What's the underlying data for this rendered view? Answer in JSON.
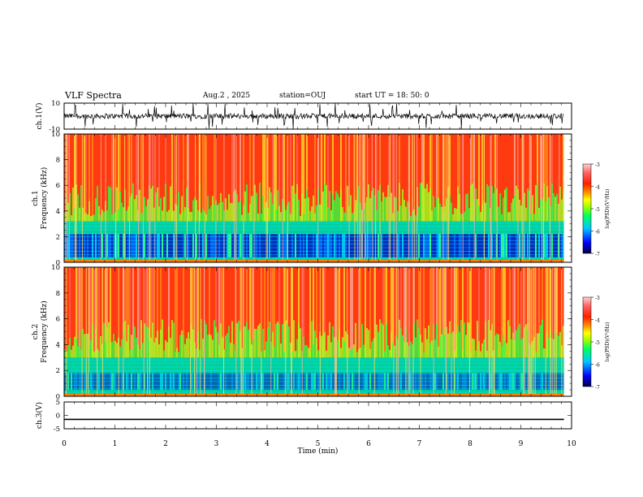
{
  "header": {
    "title": "VLF Spectra",
    "date": "Aug.2 , 2025",
    "station": "station=OUJ",
    "start_ut": "start UT = 18: 50: 0"
  },
  "chart_data": [
    {
      "type": "line",
      "name": "ch1-waveform",
      "ylabel": "ch.1(V)",
      "ylim": [
        -10,
        10
      ],
      "yticks": [
        "10",
        "-10"
      ],
      "xlim": [
        0,
        10
      ],
      "baseline": 0,
      "noise_amplitude": 2,
      "spike_min": -10,
      "spike_max": 10
    },
    {
      "type": "heatmap",
      "name": "ch1-spectrogram",
      "ylabel": "ch.1 Frequency (kHz)",
      "ylim": [
        0,
        10
      ],
      "yticks": [
        "0",
        "2",
        "4",
        "6",
        "8",
        "10"
      ],
      "xlim": [
        0,
        10
      ],
      "data_end_min": 9.85,
      "colorbar": {
        "label": "log(PSD)(V²/Hz)",
        "ticks": [
          "-3",
          "-4",
          "-5",
          "-6",
          "-7"
        ],
        "range": [
          -7,
          -3
        ]
      },
      "low_band_khz": [
        0,
        3.2
      ],
      "colors": [
        "#000060",
        "#0000c0",
        "#0040ff",
        "#00c8ff",
        "#00ff80",
        "#80ff00",
        "#ffff00",
        "#ffa000",
        "#ff3000",
        "#ff6060",
        "#ffc0c0"
      ]
    },
    {
      "type": "heatmap",
      "name": "ch2-spectrogram",
      "ylabel": "ch.2 Frequency (kHz)",
      "ylim": [
        0,
        10
      ],
      "yticks": [
        "0",
        "2",
        "4",
        "6",
        "8",
        "10"
      ],
      "xlim": [
        0,
        10
      ],
      "data_end_min": 9.85,
      "colorbar": {
        "label": "log(PSD)(V²/Hz)",
        "ticks": [
          "-3",
          "-4",
          "-5",
          "-6",
          "-7"
        ],
        "range": [
          -7,
          -3
        ]
      },
      "low_band_khz": [
        0,
        3.0
      ]
    },
    {
      "type": "line",
      "name": "ch3-trace",
      "ylabel": "ch.3(V)",
      "ylim": [
        -5,
        5
      ],
      "yticks": [
        "5",
        "0",
        "-5"
      ],
      "xlim": [
        0,
        10
      ],
      "constant_value": -1.5
    }
  ],
  "x_axis": {
    "label": "Time (min)",
    "ticks": [
      "0",
      "1",
      "2",
      "3",
      "4",
      "5",
      "6",
      "7",
      "8",
      "9",
      "10"
    ]
  }
}
